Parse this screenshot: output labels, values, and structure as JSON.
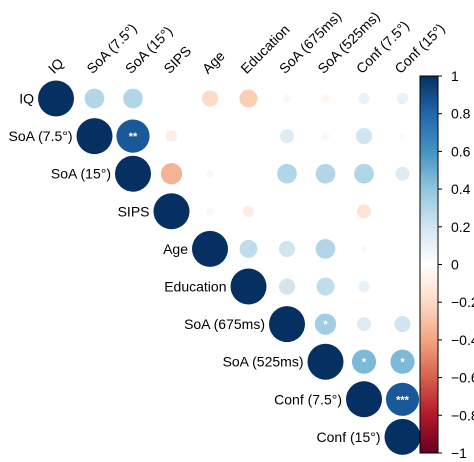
{
  "chart_data": {
    "type": "heatmap",
    "variables": [
      "IQ",
      "SoA (7.5°)",
      "SoA (15°)",
      "SIPS",
      "Age",
      "Education",
      "SoA (675ms)",
      "SoA (525ms)",
      "Conf (7.5°)",
      "Conf (15°)"
    ],
    "column_labels": [
      "IQ",
      "SoA (7.5°)",
      "SoA (15°)",
      "SIPS",
      "Age",
      "Education",
      "SoA (675ms)",
      "SoA (525ms)",
      "Conf (7.5°)",
      "Conf (15°)"
    ],
    "row_labels": [
      "IQ",
      "SoA (7.5°)",
      "SoA (15°)",
      "SIPS",
      "Age",
      "Education",
      "SoA (675ms)",
      "SoA (525ms)",
      "Conf (7.5°)",
      "Conf (15°)"
    ],
    "matrix": "upper-triangle",
    "cells": [
      {
        "row": 0,
        "col": 0,
        "value": 1.0
      },
      {
        "row": 0,
        "col": 1,
        "value": 0.3
      },
      {
        "row": 0,
        "col": 2,
        "value": 0.3
      },
      {
        "row": 0,
        "col": 4,
        "value": -0.2
      },
      {
        "row": 0,
        "col": 5,
        "value": -0.25
      },
      {
        "row": 0,
        "col": 6,
        "value": 0.05
      },
      {
        "row": 0,
        "col": 7,
        "value": -0.05
      },
      {
        "row": 0,
        "col": 8,
        "value": 0.1
      },
      {
        "row": 0,
        "col": 9,
        "value": 0.1
      },
      {
        "row": 1,
        "col": 1,
        "value": 1.0
      },
      {
        "row": 1,
        "col": 2,
        "value": 0.85,
        "significance": "**"
      },
      {
        "row": 1,
        "col": 3,
        "value": -0.1
      },
      {
        "row": 1,
        "col": 6,
        "value": 0.15
      },
      {
        "row": 1,
        "col": 7,
        "value": 0.05
      },
      {
        "row": 1,
        "col": 8,
        "value": 0.2
      },
      {
        "row": 1,
        "col": 9,
        "value": 0.03
      },
      {
        "row": 2,
        "col": 2,
        "value": 1.0
      },
      {
        "row": 2,
        "col": 3,
        "value": -0.35
      },
      {
        "row": 2,
        "col": 4,
        "value": 0.05
      },
      {
        "row": 2,
        "col": 6,
        "value": 0.3
      },
      {
        "row": 2,
        "col": 7,
        "value": 0.3
      },
      {
        "row": 2,
        "col": 8,
        "value": 0.3
      },
      {
        "row": 2,
        "col": 9,
        "value": 0.15
      },
      {
        "row": 3,
        "col": 3,
        "value": 1.0
      },
      {
        "row": 3,
        "col": 4,
        "value": 0.05
      },
      {
        "row": 3,
        "col": 5,
        "value": -0.1
      },
      {
        "row": 3,
        "col": 8,
        "value": -0.15
      },
      {
        "row": 4,
        "col": 4,
        "value": 1.0
      },
      {
        "row": 4,
        "col": 5,
        "value": 0.25
      },
      {
        "row": 4,
        "col": 6,
        "value": 0.2
      },
      {
        "row": 4,
        "col": 7,
        "value": 0.3
      },
      {
        "row": 4,
        "col": 8,
        "value": 0.03
      },
      {
        "row": 5,
        "col": 5,
        "value": 1.0
      },
      {
        "row": 5,
        "col": 6,
        "value": 0.2
      },
      {
        "row": 5,
        "col": 7,
        "value": 0.25
      },
      {
        "row": 5,
        "col": 8,
        "value": 0.1
      },
      {
        "row": 6,
        "col": 6,
        "value": 1.0
      },
      {
        "row": 6,
        "col": 7,
        "value": 0.35,
        "significance": "*"
      },
      {
        "row": 6,
        "col": 8,
        "value": 0.15
      },
      {
        "row": 6,
        "col": 9,
        "value": 0.2
      },
      {
        "row": 7,
        "col": 7,
        "value": 1.0
      },
      {
        "row": 7,
        "col": 8,
        "value": 0.45,
        "significance": "*"
      },
      {
        "row": 7,
        "col": 9,
        "value": 0.45,
        "significance": "*"
      },
      {
        "row": 8,
        "col": 8,
        "value": 1.0
      },
      {
        "row": 8,
        "col": 9,
        "value": 0.85,
        "significance": "***"
      },
      {
        "row": 9,
        "col": 9,
        "value": 1.0
      }
    ],
    "colorbar": {
      "range": [
        -1,
        1
      ],
      "tick_labels": [
        "1",
        "0.8",
        "0.6",
        "0.4",
        "0.2",
        "0",
        "−0.2",
        "−0.4",
        "−0.6",
        "−0.8",
        "−1"
      ],
      "colors": {
        "negative": "#67001f",
        "neutral": "#ffffff",
        "positive": "#053061"
      }
    },
    "grid": false
  }
}
